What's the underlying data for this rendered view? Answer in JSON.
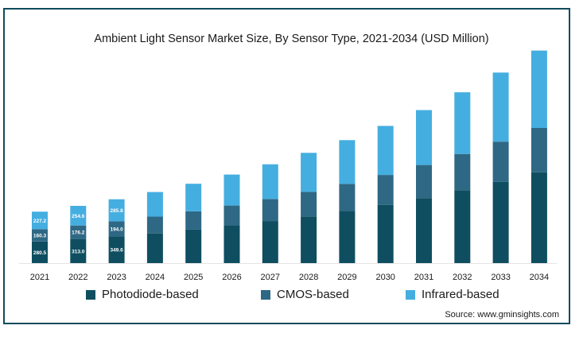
{
  "chart_data": {
    "type": "bar",
    "stacked": true,
    "title": "Ambient Light Sensor Market Size, By Sensor Type, 2021-2034 (USD Million)",
    "categories": [
      "2021",
      "2022",
      "2023",
      "2024",
      "2025",
      "2026",
      "2027",
      "2028",
      "2029",
      "2030",
      "2031",
      "2032",
      "2033",
      "2034"
    ],
    "series": [
      {
        "name": "Photodiode-based",
        "color": "#0e4e60",
        "values": [
          280.5,
          313.0,
          349.6,
          390,
          435,
          486,
          543,
          607,
          678,
          757,
          845,
          944,
          1055,
          1178
        ]
      },
      {
        "name": "CMOS-based",
        "color": "#2e6884",
        "values": [
          160.3,
          176.2,
          194.0,
          214,
          237,
          262,
          289,
          319,
          352,
          389,
          430,
          475,
          524,
          579
        ]
      },
      {
        "name": "Infrared-based",
        "color": "#45aee0",
        "values": [
          227.2,
          254.6,
          285.8,
          320,
          359,
          403,
          452,
          507,
          568,
          637,
          714,
          801,
          898,
          1006
        ]
      }
    ],
    "data_labels": {
      "Photodiode-based": [
        "280.5",
        "313.0",
        "349.6"
      ],
      "CMOS-based": [
        "160.3",
        "176.2",
        "194.0"
      ],
      "Infrared-based": [
        "227.2",
        "254.6",
        "285.8"
      ]
    },
    "xlabel": "",
    "ylabel": "",
    "ylim": [
      0,
      2800
    ],
    "grid": false,
    "legend_position": "bottom",
    "source": "Source: www.gminsights.com"
  }
}
